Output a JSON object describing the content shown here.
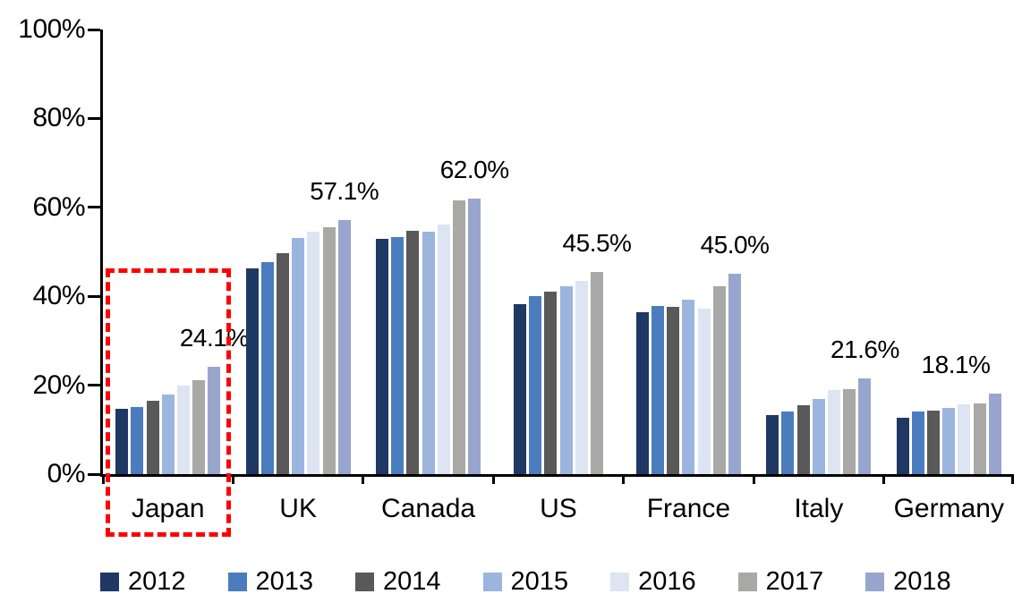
{
  "chart_data": {
    "type": "bar",
    "title": "",
    "xlabel": "",
    "ylabel": "",
    "ylim": [
      0,
      100
    ],
    "grid": false,
    "legend_position": "bottom",
    "yticks": [
      "0%",
      "20%",
      "40%",
      "60%",
      "80%",
      "100%"
    ],
    "categories": [
      "Japan",
      "UK",
      "Canada",
      "US",
      "France",
      "Italy",
      "Germany"
    ],
    "series": [
      {
        "name": "2012",
        "color": "#1F3864",
        "values": [
          14.7,
          46.2,
          53.0,
          38.2,
          36.5,
          13.2,
          12.6
        ]
      },
      {
        "name": "2013",
        "color": "#4A7CBE",
        "values": [
          15.0,
          47.7,
          53.3,
          40.0,
          37.8,
          14.1,
          14.0
        ]
      },
      {
        "name": "2014",
        "color": "#595959",
        "values": [
          16.5,
          49.8,
          54.8,
          41.1,
          37.6,
          15.5,
          14.3
        ]
      },
      {
        "name": "2015",
        "color": "#9BB5DE",
        "values": [
          17.9,
          53.1,
          54.6,
          42.2,
          39.2,
          16.9,
          14.8
        ]
      },
      {
        "name": "2016",
        "color": "#DCE5F1",
        "values": [
          20.0,
          54.6,
          56.1,
          43.5,
          37.3,
          18.9,
          15.6
        ]
      },
      {
        "name": "2017",
        "color": "#A8A8A6",
        "values": [
          21.1,
          55.6,
          61.6,
          45.5,
          42.3,
          19.1,
          15.9
        ]
      },
      {
        "name": "2018",
        "color": "#98A6CE",
        "values": [
          24.1,
          57.1,
          62.0,
          null,
          45.0,
          21.6,
          18.1
        ]
      }
    ],
    "annotations": [
      {
        "category": "Japan",
        "text": "24.1%"
      },
      {
        "category": "UK",
        "text": "57.1%"
      },
      {
        "category": "Canada",
        "text": "62.0%"
      },
      {
        "category": "US",
        "text": "45.5%"
      },
      {
        "category": "France",
        "text": "45.0%"
      },
      {
        "category": "Italy",
        "text": "21.6%"
      },
      {
        "category": "Germany",
        "text": "18.1%"
      }
    ],
    "highlight": {
      "category": "Japan",
      "style": "red-dashed-box",
      "color": "#FF0000"
    }
  }
}
